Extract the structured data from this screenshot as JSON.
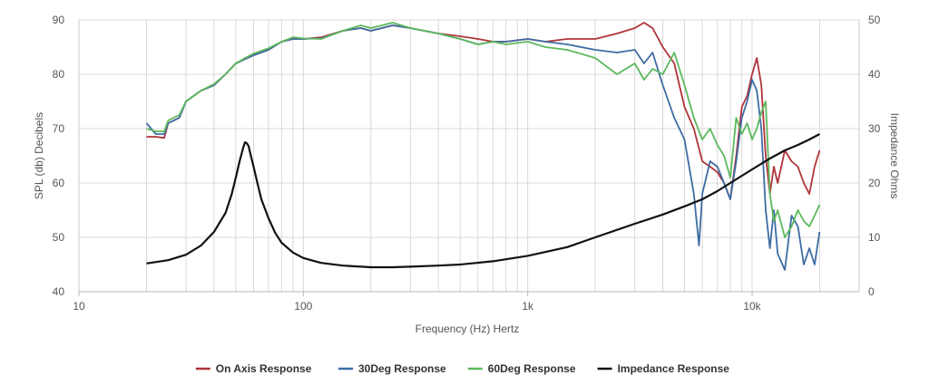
{
  "chart_data": {
    "type": "line",
    "xlabel": "Frequency (Hz) Hertz",
    "ylabel_left": "SPL (db) Decibels",
    "ylabel_right": "Impedance Ohms",
    "x_scale": "log",
    "xlim": [
      10,
      30000
    ],
    "ylim_left": [
      40,
      90
    ],
    "ylim_right": [
      0,
      50
    ],
    "x_ticks": [
      {
        "value": 10,
        "label": "10"
      },
      {
        "value": 100,
        "label": "100"
      },
      {
        "value": 1000,
        "label": "1k"
      },
      {
        "value": 10000,
        "label": "10k"
      }
    ],
    "y_ticks_left": [
      "40",
      "50",
      "60",
      "70",
      "80",
      "90"
    ],
    "y_ticks_right": [
      "0",
      "10",
      "20",
      "30",
      "40",
      "50"
    ],
    "grid": true,
    "legend_position": "bottom",
    "series": [
      {
        "name": "On Axis Response",
        "color": "#b0343a",
        "axis": "left",
        "x": [
          20,
          22,
          24,
          25,
          28,
          30,
          35,
          40,
          45,
          50,
          55,
          60,
          70,
          80,
          90,
          100,
          120,
          150,
          180,
          200,
          250,
          300,
          400,
          500,
          600,
          700,
          800,
          1000,
          1200,
          1500,
          2000,
          2500,
          3000,
          3300,
          3600,
          4000,
          4500,
          5000,
          5500,
          6000,
          6500,
          7000,
          7500,
          8000,
          8500,
          9000,
          9500,
          10000,
          10500,
          11000,
          11500,
          12000,
          12500,
          13000,
          14000,
          15000,
          16000,
          17000,
          18000,
          19000,
          20000
        ],
        "y": [
          68.5,
          68.5,
          68.3,
          71,
          72,
          75,
          77,
          78,
          80,
          82,
          82.8,
          83.5,
          84.5,
          86,
          86.5,
          86.5,
          86.8,
          88,
          88.5,
          88,
          89,
          88.5,
          87.5,
          87,
          86.5,
          86,
          86,
          86.5,
          86,
          86.5,
          86.5,
          87.5,
          88.5,
          89.5,
          88.5,
          85,
          82,
          74,
          70,
          64,
          63,
          62,
          60,
          57,
          65,
          74,
          76,
          80,
          83,
          78,
          65,
          58,
          63,
          60,
          66,
          64,
          63,
          60,
          58,
          63,
          66
        ]
      },
      {
        "name": "30Deg Response",
        "color": "#3d6ca3",
        "axis": "left",
        "x": [
          20,
          22,
          24,
          25,
          28,
          30,
          35,
          40,
          45,
          50,
          55,
          60,
          70,
          80,
          90,
          100,
          120,
          150,
          180,
          200,
          250,
          300,
          400,
          500,
          600,
          700,
          800,
          1000,
          1200,
          1500,
          2000,
          2500,
          3000,
          3300,
          3600,
          4000,
          4500,
          5000,
          5500,
          5800,
          6000,
          6500,
          7000,
          7500,
          8000,
          8500,
          9000,
          9500,
          10000,
          10500,
          11000,
          11500,
          12000,
          12500,
          13000,
          14000,
          15000,
          16000,
          17000,
          18000,
          19000,
          20000
        ],
        "y": [
          71,
          69,
          69,
          71,
          72,
          75,
          77,
          78,
          80,
          82,
          82.8,
          83.5,
          84.5,
          86,
          86.5,
          86.5,
          86.6,
          88,
          88.5,
          88,
          89,
          88.5,
          87.5,
          86.5,
          85.5,
          86,
          86,
          86.5,
          86,
          85.5,
          84.5,
          84,
          84.5,
          82,
          84,
          78,
          72,
          68,
          58,
          48.5,
          58,
          64,
          63,
          60,
          57,
          64,
          72,
          75,
          79,
          77,
          70,
          55,
          48,
          55,
          47,
          44,
          54,
          52,
          45,
          48,
          45,
          51
        ]
      },
      {
        "name": "60Deg Response",
        "color": "#5cb85c",
        "axis": "left",
        "x": [
          20,
          22,
          24,
          25,
          28,
          30,
          35,
          40,
          45,
          50,
          55,
          60,
          70,
          80,
          90,
          100,
          120,
          150,
          180,
          200,
          250,
          300,
          400,
          500,
          600,
          700,
          800,
          1000,
          1200,
          1500,
          2000,
          2500,
          3000,
          3300,
          3600,
          4000,
          4500,
          5000,
          5500,
          6000,
          6500,
          7000,
          7500,
          8000,
          8500,
          9000,
          9500,
          10000,
          10500,
          11000,
          11500,
          12000,
          12500,
          13000,
          14000,
          15000,
          16000,
          17000,
          18000,
          19000,
          20000
        ],
        "y": [
          70,
          69.5,
          69.5,
          71.5,
          72.5,
          75,
          77,
          78.2,
          80,
          82,
          83,
          83.8,
          84.8,
          86,
          86.8,
          86.6,
          86.5,
          88,
          89,
          88.5,
          89.5,
          88.5,
          87.5,
          86.5,
          85.5,
          86,
          85.5,
          86,
          85,
          84.5,
          83,
          80,
          82,
          79,
          81,
          80,
          84,
          78,
          72,
          68,
          70,
          67,
          65,
          61,
          72,
          69,
          71,
          68,
          70,
          73,
          75,
          58,
          53,
          55,
          50,
          52,
          55,
          53,
          52,
          54,
          56
        ]
      },
      {
        "name": "Impedance Response",
        "color": "#111111",
        "axis": "right",
        "x": [
          20,
          25,
          30,
          35,
          40,
          45,
          48,
          50,
          52,
          54,
          55,
          56,
          57,
          58,
          60,
          62,
          65,
          70,
          75,
          80,
          90,
          100,
          120,
          150,
          200,
          250,
          300,
          400,
          500,
          700,
          1000,
          1500,
          2000,
          3000,
          4000,
          5000,
          6000,
          7000,
          8000,
          10000,
          12000,
          14000,
          16000,
          18000,
          20000
        ],
        "y": [
          5.2,
          5.8,
          6.8,
          8.5,
          11,
          14.5,
          18,
          21,
          24,
          26.5,
          27.5,
          27.3,
          26.8,
          25.5,
          23,
          20.5,
          17,
          13.5,
          10.8,
          9,
          7.2,
          6.2,
          5.3,
          4.8,
          4.5,
          4.5,
          4.6,
          4.8,
          5.0,
          5.6,
          6.6,
          8.2,
          10,
          12.5,
          14.2,
          15.7,
          17,
          18.5,
          20,
          22.5,
          24.5,
          26,
          27,
          28,
          29
        ]
      }
    ]
  }
}
